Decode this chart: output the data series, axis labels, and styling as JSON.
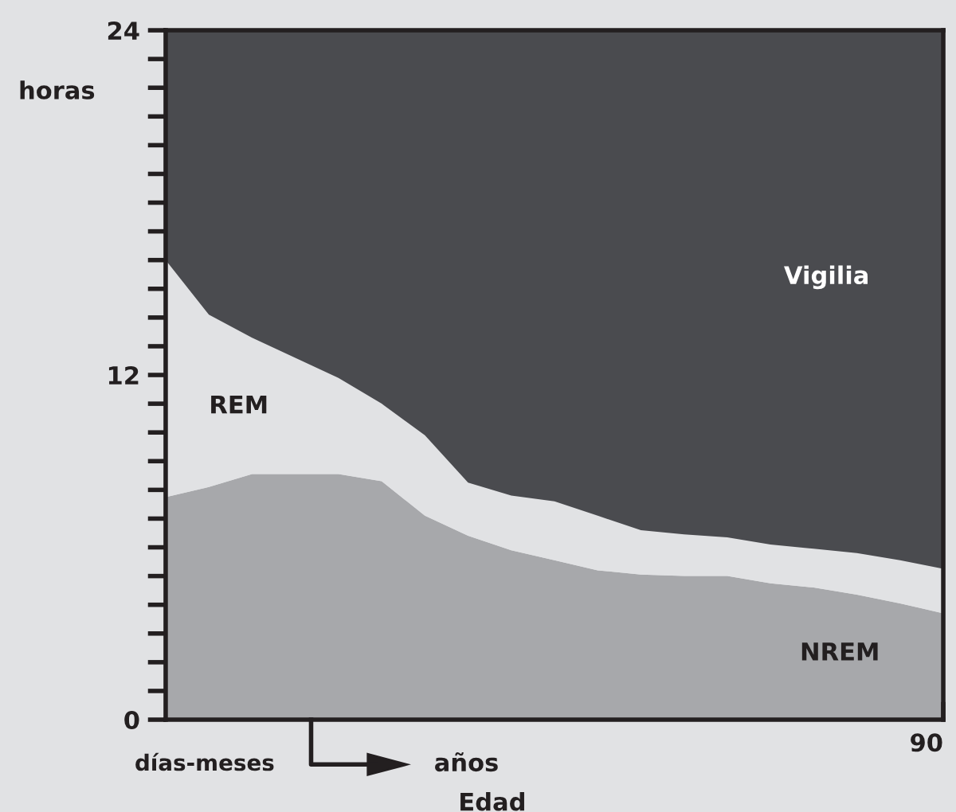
{
  "chart_data": {
    "type": "area",
    "stacked": true,
    "xlabel": "Edad",
    "ylabel": "horas",
    "categories": [
      null,
      null,
      null,
      null,
      null,
      null,
      null,
      null,
      null,
      null,
      null,
      null,
      null,
      null,
      null,
      null,
      null,
      null,
      "90"
    ],
    "ylim": [
      0,
      24
    ],
    "yticks": [
      0,
      {
        "value": 1,
        "label": null
      },
      {
        "value": 2,
        "label": null
      },
      {
        "value": 3,
        "label": null
      },
      {
        "value": 4,
        "label": null
      },
      {
        "value": 5,
        "label": null
      },
      {
        "value": 6,
        "label": null
      },
      {
        "value": 7,
        "label": null
      },
      {
        "value": 8,
        "label": null
      },
      {
        "value": 9,
        "label": null
      },
      {
        "value": 10,
        "label": null
      },
      {
        "value": 11,
        "label": null
      },
      12,
      {
        "value": 13,
        "label": null
      },
      {
        "value": 14,
        "label": null
      },
      {
        "value": 15,
        "label": null
      },
      {
        "value": 16,
        "label": null
      },
      {
        "value": 17,
        "label": null
      },
      {
        "value": 18,
        "label": null
      },
      {
        "value": 19,
        "label": null
      },
      {
        "value": 20,
        "label": null
      },
      {
        "value": 21,
        "label": null
      },
      {
        "value": 22,
        "label": null
      },
      {
        "value": 23,
        "label": null
      },
      24
    ],
    "series": [
      {
        "name": "NREM",
        "color": "#a7a8ab",
        "values": [
          7.75,
          8.1,
          8.55,
          8.55,
          8.55,
          8.3,
          7.1,
          6.4,
          5.9,
          5.55,
          5.2,
          5.05,
          5.0,
          5.0,
          4.75,
          4.6,
          4.35,
          4.05,
          3.7
        ]
      },
      {
        "name": "REM",
        "color": "#e1e2e4",
        "values": [
          8.25,
          6.0,
          4.75,
          4.05,
          3.35,
          2.7,
          2.8,
          1.85,
          1.9,
          2.05,
          1.9,
          1.55,
          1.45,
          1.35,
          1.35,
          1.35,
          1.45,
          1.5,
          1.55
        ]
      },
      {
        "name": "Vigilia",
        "color": "#4a4b4f",
        "values": [
          8,
          9.9,
          10.7,
          11.4,
          12.1,
          13,
          14.1,
          15.75,
          16.2,
          16.4,
          16.9,
          17.4,
          17.55,
          17.65,
          17.9,
          18.05,
          18.2,
          18.45,
          18.75
        ]
      }
    ],
    "annotations": [
      "días-meses",
      "años"
    ]
  }
}
